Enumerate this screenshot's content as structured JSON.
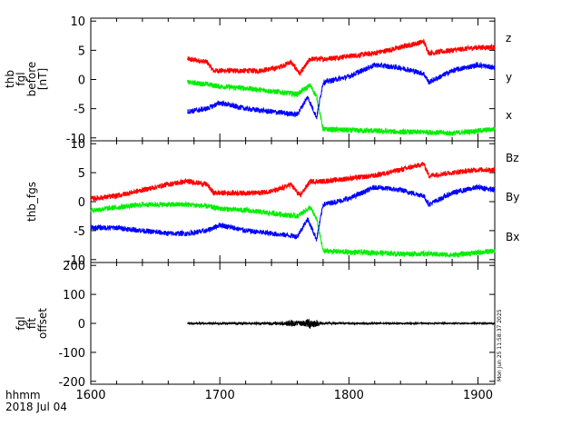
{
  "chart_data": [
    {
      "type": "line",
      "ylabel_lines": [
        "thb",
        "fgl",
        "before",
        "[nT]"
      ],
      "ylim": [
        -10.5,
        10.5
      ],
      "yticks": [
        10,
        5,
        0,
        -5,
        -10
      ],
      "x_range_plotted": [
        1675,
        1913
      ],
      "series": [
        {
          "name": "z",
          "color": "#ff0000",
          "x": [
            1675,
            1690,
            1695,
            1700,
            1715,
            1730,
            1745,
            1755,
            1762,
            1770,
            1780,
            1800,
            1820,
            1840,
            1858,
            1862,
            1880,
            1900,
            1913
          ],
          "values": [
            3.5,
            3.0,
            1.5,
            1.5,
            1.5,
            1.5,
            2.0,
            3.0,
            1.0,
            3.5,
            3.5,
            4.0,
            4.5,
            5.5,
            6.5,
            4.5,
            5.0,
            5.5,
            5.5
          ]
        },
        {
          "name": "y",
          "color": "#00ee00",
          "x": [
            1675,
            1690,
            1700,
            1720,
            1740,
            1760,
            1770,
            1775,
            1780,
            1800,
            1820,
            1840,
            1860,
            1880,
            1900,
            1913
          ],
          "values": [
            -0.5,
            -0.8,
            -1.2,
            -1.5,
            -2.0,
            -2.5,
            -1.0,
            -3.0,
            -8.5,
            -8.7,
            -8.8,
            -9.0,
            -9.0,
            -9.2,
            -8.8,
            -8.5
          ]
        },
        {
          "name": "x",
          "color": "#0000ff",
          "x": [
            1675,
            1690,
            1700,
            1720,
            1740,
            1760,
            1768,
            1775,
            1780,
            1800,
            1820,
            1840,
            1858,
            1862,
            1880,
            1900,
            1913
          ],
          "values": [
            -5.5,
            -5.0,
            -4.0,
            -5.0,
            -5.5,
            -6.0,
            -3.0,
            -6.5,
            -0.5,
            0.5,
            2.5,
            2.0,
            1.0,
            -0.5,
            1.5,
            2.5,
            2.0
          ]
        }
      ]
    },
    {
      "type": "line",
      "ylabel": "thb_fgs",
      "ylim": [
        -10.5,
        10.5
      ],
      "yticks": [
        10,
        5,
        0,
        -5,
        -10
      ],
      "x_range_plotted": [
        1600,
        1913
      ],
      "series": [
        {
          "name": "Bz",
          "color": "#ff0000",
          "x": [
            1600,
            1620,
            1640,
            1660,
            1675,
            1690,
            1695,
            1700,
            1715,
            1730,
            1745,
            1755,
            1762,
            1770,
            1780,
            1800,
            1820,
            1840,
            1858,
            1862,
            1880,
            1900,
            1913
          ],
          "values": [
            0.5,
            1.0,
            2.0,
            3.0,
            3.5,
            3.0,
            1.5,
            1.5,
            1.5,
            1.5,
            2.0,
            3.0,
            1.0,
            3.5,
            3.5,
            4.0,
            4.5,
            5.5,
            6.5,
            4.5,
            5.0,
            5.5,
            5.5
          ]
        },
        {
          "name": "By",
          "color": "#00ee00",
          "x": [
            1600,
            1620,
            1640,
            1660,
            1675,
            1690,
            1700,
            1720,
            1740,
            1760,
            1770,
            1775,
            1780,
            1800,
            1820,
            1840,
            1860,
            1880,
            1900,
            1913
          ],
          "values": [
            -1.5,
            -1.0,
            -0.5,
            -0.5,
            -0.5,
            -0.8,
            -1.2,
            -1.5,
            -2.0,
            -2.5,
            -1.0,
            -3.0,
            -8.5,
            -8.7,
            -8.8,
            -9.0,
            -9.0,
            -9.2,
            -8.8,
            -8.5
          ]
        },
        {
          "name": "Bx",
          "color": "#0000ff",
          "x": [
            1600,
            1620,
            1640,
            1660,
            1675,
            1690,
            1700,
            1720,
            1740,
            1760,
            1768,
            1775,
            1780,
            1800,
            1820,
            1840,
            1858,
            1862,
            1880,
            1900,
            1913
          ],
          "values": [
            -4.5,
            -4.5,
            -5.0,
            -5.5,
            -5.5,
            -5.0,
            -4.0,
            -5.0,
            -5.5,
            -6.0,
            -3.0,
            -6.5,
            -0.5,
            0.5,
            2.5,
            2.0,
            1.0,
            -0.5,
            1.5,
            2.5,
            2.0
          ]
        }
      ]
    },
    {
      "type": "line",
      "ylabel_lines": [
        "fgl",
        "fit",
        "offset"
      ],
      "ylim": [
        -210,
        210
      ],
      "yticks": [
        200,
        100,
        0,
        -100,
        -200
      ],
      "x_range_plotted": [
        1675,
        1913
      ],
      "series": [
        {
          "color": "#000000",
          "x": [
            1675,
            1700,
            1720,
            1750,
            1755,
            1760,
            1765,
            1770,
            1775,
            1780,
            1800,
            1850,
            1913
          ],
          "values": [
            0,
            0,
            0,
            0,
            0,
            0,
            0,
            0,
            0,
            0,
            0,
            0,
            0
          ],
          "amplitude_note": [
            3,
            4,
            3,
            6,
            12,
            8,
            10,
            20,
            10,
            4,
            3,
            2,
            2
          ]
        }
      ]
    }
  ],
  "x_axis": {
    "xlim": [
      1600,
      1913
    ],
    "ticks": [
      1600,
      1700,
      1800,
      1900
    ],
    "tick_labels": [
      "1600",
      "1700",
      "1800",
      "1900"
    ],
    "label_line1": "hhmm",
    "label_line2": "2018 Jul 04"
  },
  "side_stamp": "Mon Jun 25 11:58:37 2025"
}
